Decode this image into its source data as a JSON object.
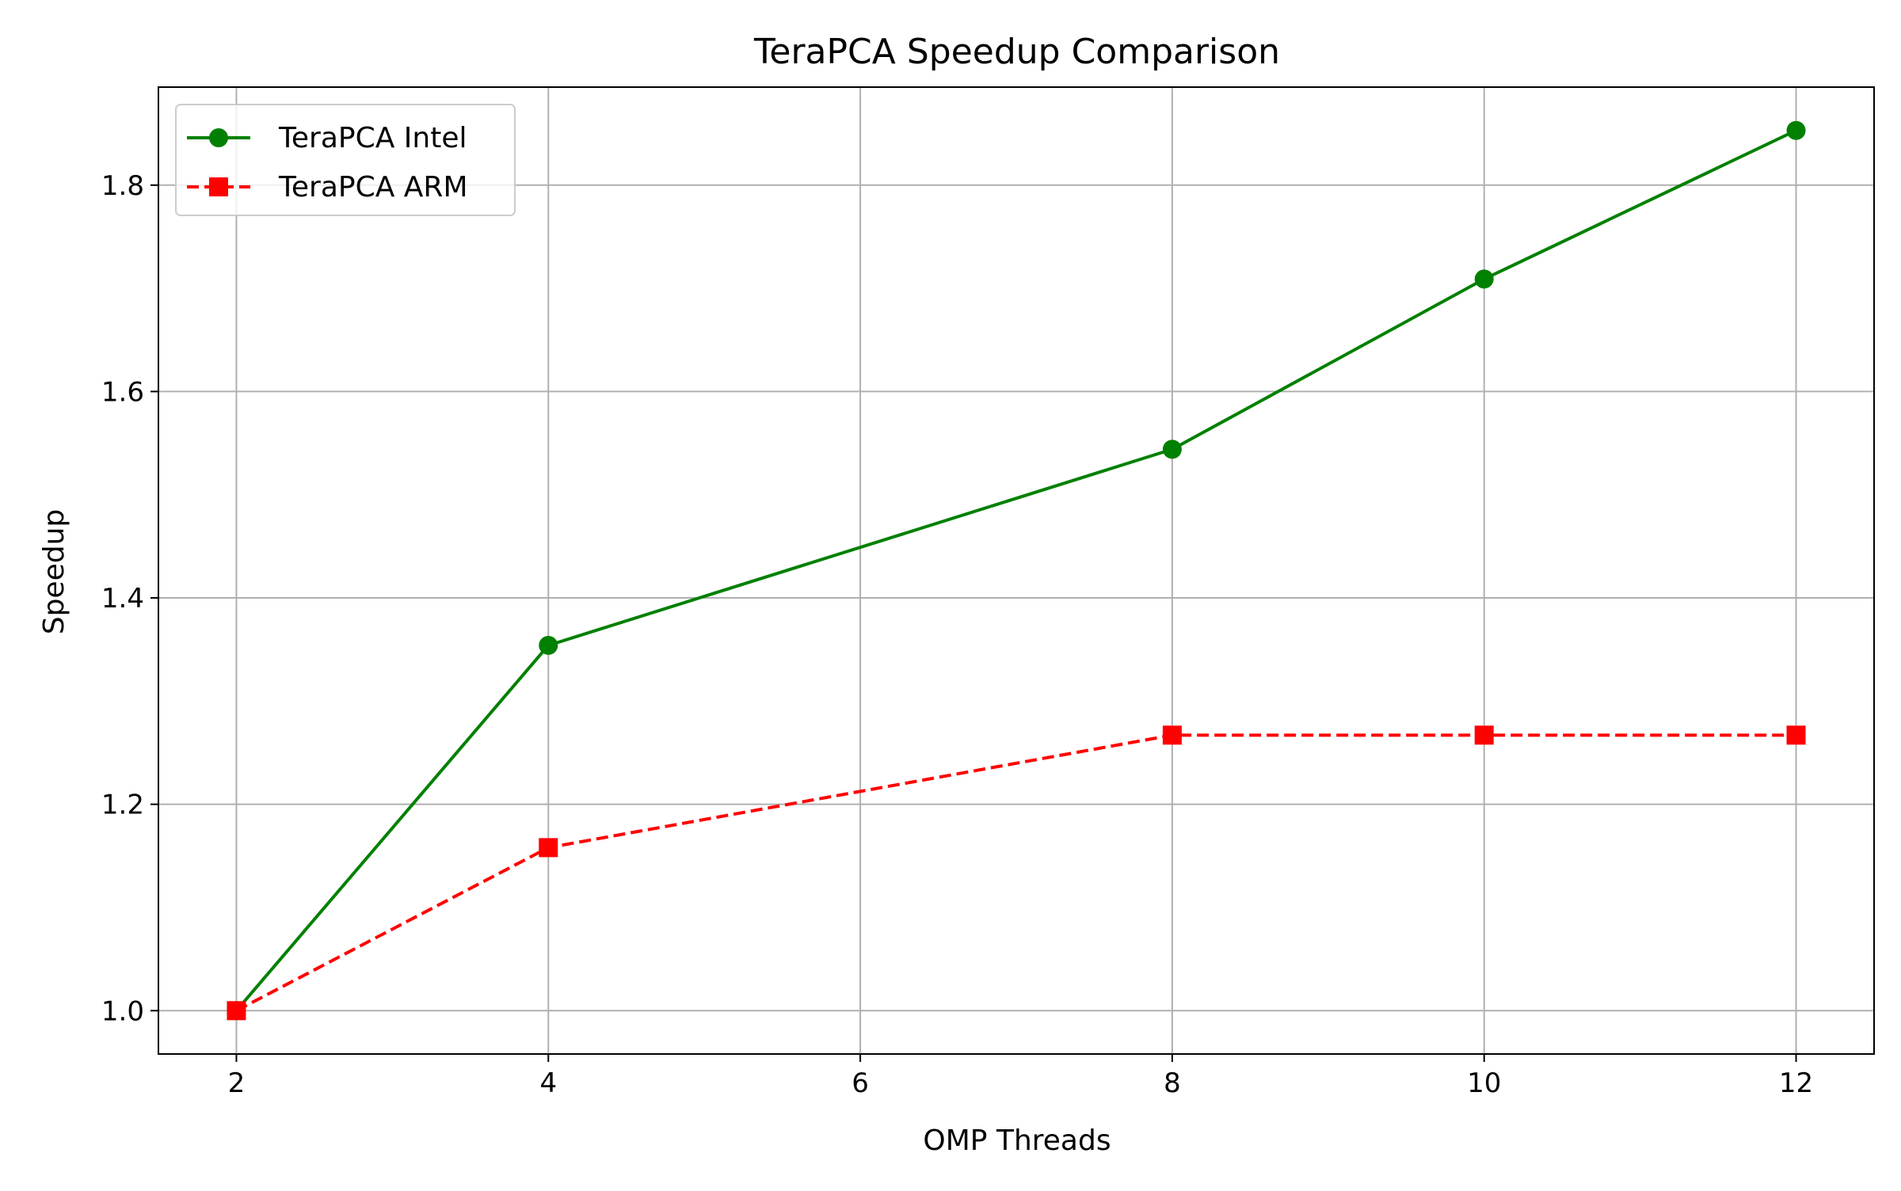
{
  "chart_data": {
    "type": "line",
    "title": "TeraPCA Speedup Comparison",
    "xlabel": "OMP Threads",
    "ylabel": "Speedup",
    "xlim": [
      1.5,
      12.5
    ],
    "ylim": [
      0.958,
      1.895
    ],
    "xticks": [
      2,
      4,
      6,
      8,
      10,
      12
    ],
    "xtick_labels": [
      "2",
      "4",
      "6",
      "8",
      "10",
      "12"
    ],
    "yticks": [
      1.0,
      1.2,
      1.4,
      1.6,
      1.8
    ],
    "ytick_labels": [
      "1.0",
      "1.2",
      "1.4",
      "1.6",
      "1.8"
    ],
    "grid": true,
    "legend_position": "top-left",
    "series": [
      {
        "name": "TeraPCA Intel",
        "color": "#008000",
        "line_style": "solid",
        "marker": "circle",
        "x": [
          2,
          4,
          8,
          10,
          12
        ],
        "y": [
          1.0,
          1.354,
          1.544,
          1.709,
          1.853
        ]
      },
      {
        "name": "TeraPCA ARM",
        "color": "#ff0000",
        "line_style": "dashed",
        "marker": "square",
        "x": [
          2,
          4,
          8,
          10,
          12
        ],
        "y": [
          1.0,
          1.158,
          1.267,
          1.267,
          1.267
        ]
      }
    ]
  }
}
